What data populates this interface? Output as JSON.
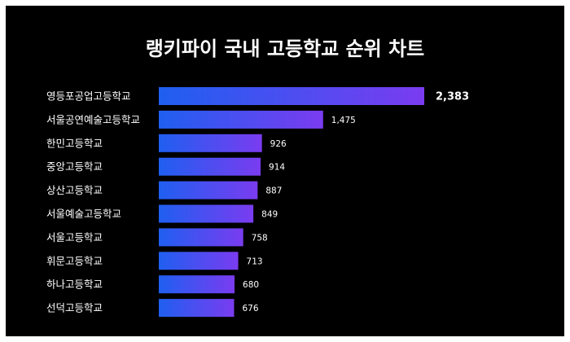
{
  "chart_data": {
    "type": "bar",
    "orientation": "horizontal",
    "title": "랭키파이 국내 고등학교 순위 차트",
    "categories": [
      "영등포공업고등학교",
      "서울공연예술고등학교",
      "한민고등학교",
      "중앙고등학교",
      "상산고등학교",
      "서울예술고등학교",
      "서울고등학교",
      "휘문고등학교",
      "하나고등학교",
      "선덕고등학교"
    ],
    "values": [
      2383,
      1475,
      926,
      914,
      887,
      849,
      758,
      713,
      680,
      676
    ],
    "value_labels": [
      "2,383",
      "1,475",
      "926",
      "914",
      "887",
      "849",
      "758",
      "713",
      "680",
      "676"
    ],
    "xlabel": "",
    "ylabel": "",
    "xlim": [
      0,
      2383
    ],
    "grid": false,
    "colors": {
      "background": "#000000",
      "bar_start": "#1f5ff0",
      "bar_end": "#7a3cf0",
      "text": "#ffffff"
    }
  }
}
